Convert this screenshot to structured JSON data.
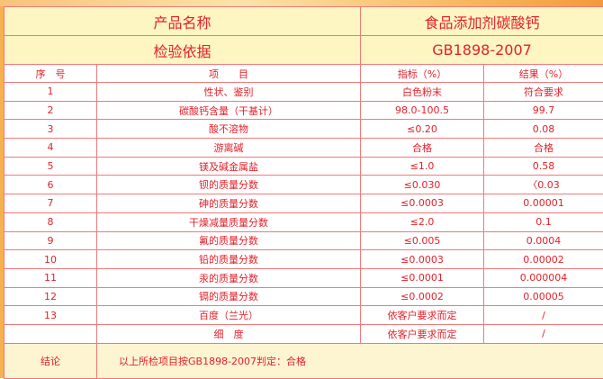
{
  "product_label": "产品名称",
  "product_value": "食品添加剂碳酸钙",
  "basis_label": "检验依据",
  "basis_value": "GB1898-2007",
  "columns": [
    "序　号",
    "项　　目",
    "指标（%）",
    "结果（%）"
  ],
  "rows": [
    {
      "no": "1",
      "item": "性状、鉴别",
      "spec": "白色粉末",
      "result": "符合要求"
    },
    {
      "no": "2",
      "item": "碳酸钙含量（干基计）",
      "spec": "98.0-100.5",
      "result": "99.7"
    },
    {
      "no": "3",
      "item": "酸不溶物",
      "spec": "≤0.20",
      "result": "0.08"
    },
    {
      "no": "4",
      "item": "游离碱",
      "spec": "合格",
      "result": "合格"
    },
    {
      "no": "5",
      "item": "镁及碱金属盐",
      "spec": "≤1.0",
      "result": "0.58"
    },
    {
      "no": "6",
      "item": "钡的质量分数",
      "spec": "≤0.030",
      "result": "〈0.03"
    },
    {
      "no": "7",
      "item": "砷的质量分数",
      "spec": "≤0.0003",
      "result": "0.00001"
    },
    {
      "no": "8",
      "item": "干燥减量质量分数",
      "spec": "≤2.0",
      "result": "0.1"
    },
    {
      "no": "9",
      "item": "氟的质量分数",
      "spec": "≤0.005",
      "result": "0.0004"
    },
    {
      "no": "10",
      "item": "铅的质量分数",
      "spec": "≤0.0003",
      "result": "0.00002"
    },
    {
      "no": "11",
      "item": "汞的质量分数",
      "spec": "≤0.0001",
      "result": "0.000004"
    },
    {
      "no": "12",
      "item": "镉的质量分数",
      "spec": "≤0.0002",
      "result": "0.00005"
    },
    {
      "no": "13",
      "item": "百度（兰光）",
      "spec": "依客户要求而定",
      "result": "/"
    },
    {
      "no": "",
      "item": "细　度",
      "spec": "依客户要求而定",
      "result": "/"
    }
  ],
  "conclusion_label": "结论",
  "conclusion_text": "以上所检项目按GB1898-2007判定：合格"
}
